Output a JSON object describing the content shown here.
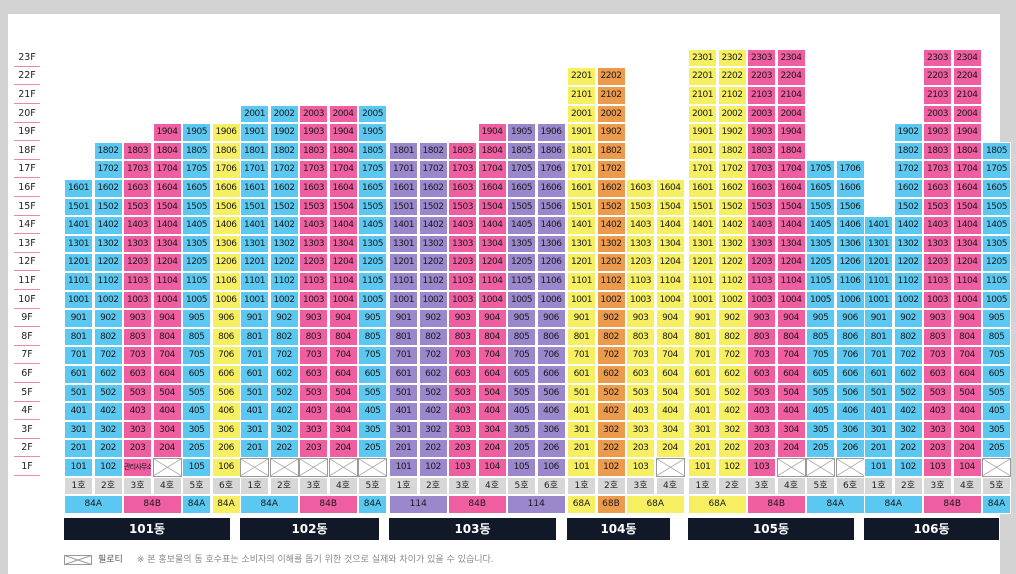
{
  "colors": {
    "blue": "#5ac8f0",
    "yellow": "#f6ef62",
    "pink": "#ee5ea0",
    "purple": "#9a87cc",
    "orange": "#ec9a4c",
    "ho_gray": "#d7d7d7",
    "name_bar": "#111827",
    "floor_line": "#e88aa6"
  },
  "floor_labels": [
    "23F",
    "22F",
    "21F",
    "20F",
    "19F",
    "18F",
    "17F",
    "16F",
    "15F",
    "14F",
    "13F",
    "12F",
    "11F",
    "10F",
    "9F",
    "8F",
    "7F",
    "6F",
    "5F",
    "4F",
    "3F",
    "2F",
    "1F"
  ],
  "buildings": [
    {
      "name": "101동",
      "columns": [
        {
          "ho": "1호",
          "top": 16,
          "color": "blue",
          "first_floor": "101"
        },
        {
          "ho": "2호",
          "top": 18,
          "color": "blue",
          "first_floor": "102"
        },
        {
          "ho": "3호",
          "top": 18,
          "color": "pink",
          "first_floor": "관리사무소"
        },
        {
          "ho": "4호",
          "top": 19,
          "color": "pink",
          "first_floor": null
        },
        {
          "ho": "5호",
          "top": 19,
          "color": "blue",
          "first_floor": "105"
        },
        {
          "ho": "6호",
          "top": 19,
          "color": "yellow",
          "first_floor": "106"
        }
      ],
      "types": [
        {
          "label": "84A",
          "span": 2,
          "color": "blue"
        },
        {
          "label": "84B",
          "span": 2,
          "color": "pink"
        },
        {
          "label": "84A",
          "span": 1,
          "color": "blue"
        },
        {
          "label": "84A",
          "span": 1,
          "color": "yellow"
        }
      ]
    },
    {
      "name": "102동",
      "columns": [
        {
          "ho": "1호",
          "top": 20,
          "color": "blue",
          "first_floor": null
        },
        {
          "ho": "2호",
          "top": 20,
          "color": "blue",
          "first_floor": null
        },
        {
          "ho": "3호",
          "top": 20,
          "color": "pink",
          "first_floor": null
        },
        {
          "ho": "4호",
          "top": 20,
          "color": "pink",
          "first_floor": null
        },
        {
          "ho": "5호",
          "top": 20,
          "color": "blue",
          "first_floor": null
        }
      ],
      "types": [
        {
          "label": "84A",
          "span": 2,
          "color": "blue"
        },
        {
          "label": "84B",
          "span": 2,
          "color": "pink"
        },
        {
          "label": "84A",
          "span": 1,
          "color": "blue"
        }
      ]
    },
    {
      "name": "103동",
      "columns": [
        {
          "ho": "1호",
          "top": 18,
          "color": "purple",
          "first_floor": "101"
        },
        {
          "ho": "2호",
          "top": 18,
          "color": "purple",
          "first_floor": "102"
        },
        {
          "ho": "3호",
          "top": 18,
          "color": "pink",
          "first_floor": "103"
        },
        {
          "ho": "4호",
          "top": 19,
          "color": "pink",
          "first_floor": "104"
        },
        {
          "ho": "5호",
          "top": 19,
          "color": "purple",
          "first_floor": "105"
        },
        {
          "ho": "6호",
          "top": 19,
          "color": "purple",
          "first_floor": "106"
        }
      ],
      "types": [
        {
          "label": "114",
          "span": 2,
          "color": "purple"
        },
        {
          "label": "84B",
          "span": 2,
          "color": "pink"
        },
        {
          "label": "114",
          "span": 2,
          "color": "purple"
        }
      ]
    },
    {
      "name": "104동",
      "columns": [
        {
          "ho": "1호",
          "top": 22,
          "color": "yellow",
          "first_floor": "101"
        },
        {
          "ho": "2호",
          "top": 22,
          "color": "orange",
          "first_floor": "102"
        },
        {
          "ho": "3호",
          "top": 16,
          "color": "yellow",
          "first_floor": "103"
        },
        {
          "ho": "4호",
          "top": 16,
          "color": "yellow",
          "first_floor": null
        }
      ],
      "types": [
        {
          "label": "68A",
          "span": 1,
          "color": "yellow"
        },
        {
          "label": "68B",
          "span": 1,
          "color": "orange"
        },
        {
          "label": "68A",
          "span": 2,
          "color": "yellow"
        }
      ]
    },
    {
      "name": "105동",
      "columns": [
        {
          "ho": "1호",
          "top": 23,
          "color": "yellow",
          "first_floor": "101"
        },
        {
          "ho": "2호",
          "top": 23,
          "color": "yellow",
          "first_floor": "102"
        },
        {
          "ho": "3호",
          "top": 23,
          "color": "pink",
          "first_floor": "103"
        },
        {
          "ho": "4호",
          "top": 23,
          "color": "pink",
          "first_floor": null
        },
        {
          "ho": "5호",
          "top": 17,
          "color": "blue",
          "first_floor": null
        },
        {
          "ho": "6호",
          "top": 17,
          "color": "blue",
          "first_floor": null
        }
      ],
      "types": [
        {
          "label": "68A",
          "span": 2,
          "color": "yellow"
        },
        {
          "label": "84B",
          "span": 2,
          "color": "pink"
        },
        {
          "label": "84A",
          "span": 2,
          "color": "blue"
        }
      ]
    },
    {
      "name": "106동",
      "columns": [
        {
          "ho": "1호",
          "top": 14,
          "color": "blue",
          "first_floor": "101"
        },
        {
          "ho": "2호",
          "top": 19,
          "color": "blue",
          "first_floor": "102"
        },
        {
          "ho": "3호",
          "top": 23,
          "color": "pink",
          "first_floor": "103"
        },
        {
          "ho": "4호",
          "top": 23,
          "color": "pink",
          "first_floor": "104"
        },
        {
          "ho": "5호",
          "top": 18,
          "color": "blue",
          "first_floor": null
        }
      ],
      "types": [
        {
          "label": "84A",
          "span": 2,
          "color": "blue"
        },
        {
          "label": "84B",
          "span": 2,
          "color": "pink"
        },
        {
          "label": "84A",
          "span": 1,
          "color": "blue"
        }
      ]
    }
  ],
  "footer": {
    "legend_label": "필로티",
    "note": "※ 본 홍보물의 동 호수표는 소비자의 이해를 돕기 위한 것으로 실제와 차이가 있을 수 있습니다."
  }
}
